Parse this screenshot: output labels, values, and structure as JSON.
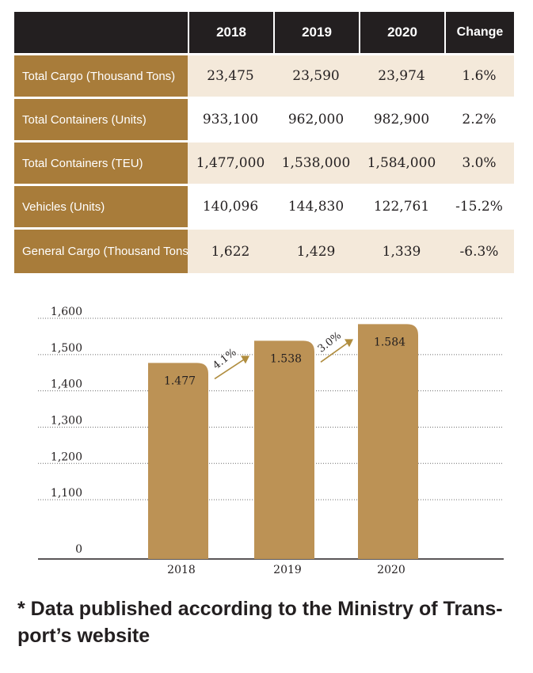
{
  "table": {
    "headers": [
      "",
      "2018",
      "2019",
      "2020",
      "Change"
    ],
    "rows": [
      {
        "label": "Total Cargo (Thousand Tons)",
        "v2018": "23,475",
        "v2019": "23,590",
        "v2020": "23,974",
        "change": "1.6%"
      },
      {
        "label": "Total Containers (Units)",
        "v2018": "933,100",
        "v2019": "962,000",
        "v2020": "982,900",
        "change": "2.2%"
      },
      {
        "label": "Total Containers (TEU)",
        "v2018": "1,477,000",
        "v2019": "1,538,000",
        "v2020": "1,584,000",
        "change": "3.0%"
      },
      {
        "label": "Vehicles (Units)",
        "v2018": "140,096",
        "v2019": "144,830",
        "v2020": "122,761",
        "change": "-15.2%"
      },
      {
        "label": "General Cargo (Thousand Tons)",
        "v2018": "1,622",
        "v2019": "1,429",
        "v2020": "1,339",
        "change": "-6.3%"
      }
    ]
  },
  "chart_data": {
    "type": "bar",
    "categories": [
      "2018",
      "2019",
      "2020"
    ],
    "values": [
      1477,
      1538,
      1584
    ],
    "value_labels": [
      "1.477",
      "1.538",
      "1.584"
    ],
    "growth_labels": [
      "4.1%",
      "3.0%"
    ],
    "y_tick_values": [
      0,
      1100,
      1200,
      1300,
      1400,
      1500,
      1600
    ],
    "y_tick_labels": [
      "0",
      "1,100",
      "1,200",
      "1,300",
      "1,400",
      "1,500",
      "1,600"
    ],
    "ylim": [
      1050,
      1600
    ],
    "axis_break": true,
    "grid": true,
    "bar_color": "#bc9255",
    "arrow_color": "#b08d3f"
  },
  "footnote": "* Data published according to the Ministry of Trans-port’s website"
}
